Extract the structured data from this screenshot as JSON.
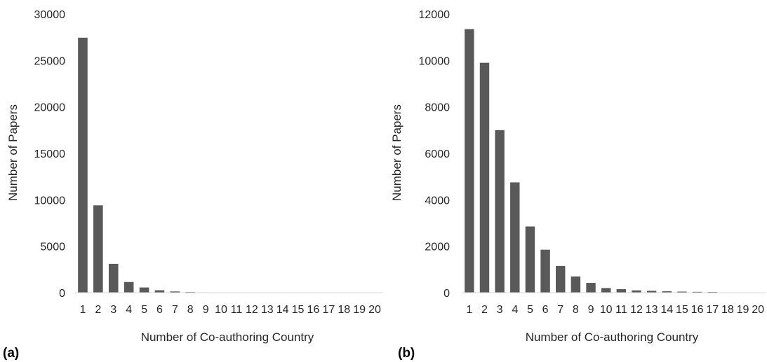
{
  "chart_data": [
    {
      "type": "bar",
      "panel_label": "(a)",
      "xlabel": "Number of Co-authoring Country",
      "ylabel": "Number of  Papers",
      "ylim": [
        0,
        30000
      ],
      "yticks": [
        "0",
        "5000",
        "10000",
        "15000",
        "20000",
        "25000",
        "30000"
      ],
      "categories": [
        "1",
        "2",
        "3",
        "4",
        "5",
        "6",
        "7",
        "8",
        "9",
        "10",
        "11",
        "12",
        "13",
        "14",
        "15",
        "16",
        "17",
        "18",
        "19",
        "20"
      ],
      "values": [
        27450,
        9400,
        3100,
        1150,
        560,
        260,
        130,
        70,
        40,
        20,
        12,
        8,
        5,
        4,
        3,
        2,
        2,
        1,
        1,
        1
      ],
      "grid": false,
      "bar_color": "#595959"
    },
    {
      "type": "bar",
      "panel_label": "(b)",
      "xlabel": "Number of Co-authoring Country",
      "ylabel": "Number of  Papers",
      "ylim": [
        0,
        12000
      ],
      "yticks": [
        "0",
        "2000",
        "4000",
        "6000",
        "8000",
        "10000",
        "12000"
      ],
      "categories": [
        "1",
        "2",
        "3",
        "4",
        "5",
        "6",
        "7",
        "8",
        "9",
        "10",
        "11",
        "12",
        "13",
        "14",
        "15",
        "16",
        "17",
        "18",
        "19",
        "20"
      ],
      "values": [
        11350,
        9900,
        7000,
        4750,
        2850,
        1850,
        1150,
        700,
        420,
        200,
        150,
        100,
        80,
        60,
        45,
        35,
        30,
        15,
        10,
        8
      ],
      "grid": false,
      "bar_color": "#595959"
    }
  ]
}
